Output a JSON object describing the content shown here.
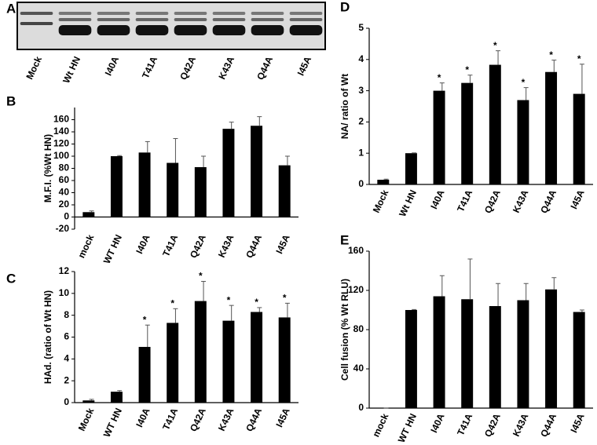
{
  "chart_data": [
    {
      "type": "gel",
      "label": "A",
      "categories": [
        "Mock",
        "Wt HN",
        "I40A",
        "T41A",
        "Q42A",
        "K43A",
        "Q44A",
        "I45A"
      ]
    },
    {
      "type": "bar",
      "label": "B",
      "ylabel": "M.F.I.  (%Wt HN)",
      "color": "#000000",
      "categories": [
        "mock",
        "WT HN",
        "I40A",
        "T41A",
        "Q42A",
        "K43A",
        "Q44A",
        "I45A"
      ],
      "values": [
        8,
        100,
        106,
        89,
        82,
        145,
        150,
        85
      ],
      "errors": [
        2,
        1,
        18,
        40,
        18,
        11,
        15,
        15
      ],
      "ylim": [
        -20,
        180
      ],
      "yticks": [
        -20,
        0,
        20,
        40,
        60,
        80,
        100,
        120,
        140,
        160
      ]
    },
    {
      "type": "bar",
      "label": "C",
      "ylabel": "HAd. (ratio of Wt HN)",
      "color": "#000000",
      "categories": [
        "Mock",
        "WT HN",
        "I40A",
        "T41A",
        "Q42A",
        "K43A",
        "Q44A",
        "I45A"
      ],
      "values": [
        0.2,
        1.0,
        5.1,
        7.3,
        9.3,
        7.5,
        8.3,
        7.8
      ],
      "errors": [
        0.1,
        0.1,
        2.0,
        1.3,
        1.8,
        1.4,
        0.4,
        1.3
      ],
      "annotations": [
        null,
        null,
        "*",
        "*",
        "*",
        "*",
        "*",
        "*"
      ],
      "ylim": [
        0,
        12
      ],
      "yticks": [
        0,
        2,
        4,
        6,
        8,
        10,
        12
      ]
    },
    {
      "type": "bar",
      "label": "D",
      "ylabel": "NA/ ratio of Wt",
      "color": "#000000",
      "categories": [
        "Mock",
        "Wt HN",
        "I40A",
        "T41A",
        "Q42A",
        "K43A",
        "Q44A",
        "I45A"
      ],
      "values": [
        0.15,
        1.0,
        3.0,
        3.25,
        3.83,
        2.7,
        3.6,
        2.9
      ],
      "errors": [
        0.02,
        0.01,
        0.25,
        0.25,
        0.45,
        0.4,
        0.38,
        0.95
      ],
      "annotations": [
        null,
        null,
        "*",
        "*",
        "*",
        "*",
        "*",
        "*"
      ],
      "ylim": [
        0,
        5
      ],
      "yticks": [
        0,
        1,
        2,
        3,
        4,
        5
      ]
    },
    {
      "type": "bar",
      "label": "E",
      "ylabel": "Cell fusion (% Wt RLU)",
      "color": "#000000",
      "categories": [
        "mock",
        "WT HN",
        "I40A",
        "T41A",
        "Q42A",
        "K43A",
        "Q44A",
        "I45A"
      ],
      "values": [
        0,
        100,
        114,
        111,
        104,
        110,
        121,
        98
      ],
      "errors": [
        0,
        0.5,
        21,
        41,
        23,
        17,
        12,
        2
      ],
      "ylim": [
        0,
        160
      ],
      "yticks": [
        0,
        40,
        80,
        120,
        160
      ]
    }
  ]
}
